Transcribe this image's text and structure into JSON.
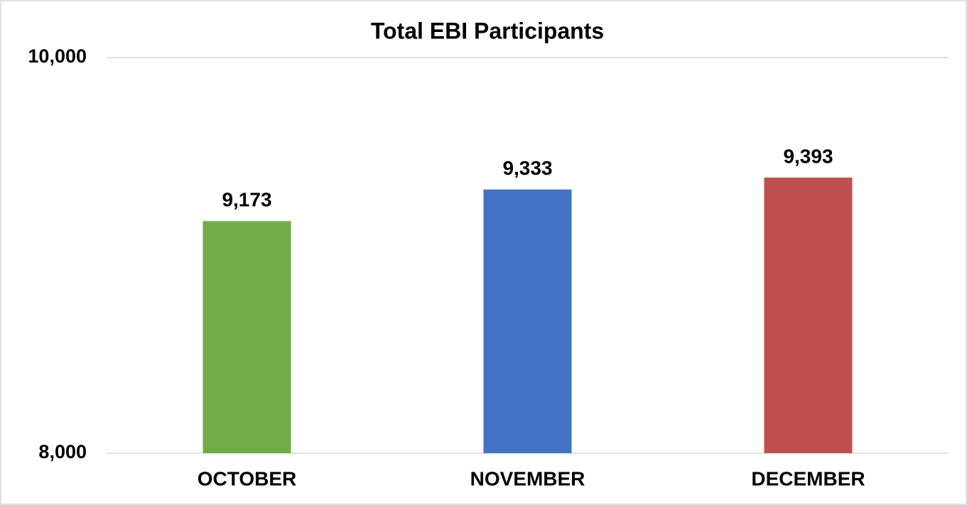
{
  "chart_data": {
    "type": "bar",
    "title": "Total EBI Participants",
    "categories": [
      "OCTOBER",
      "NOVEMBER",
      "DECEMBER"
    ],
    "values": [
      9173,
      9333,
      9393
    ],
    "value_labels": [
      "9,173",
      "9,333",
      "9,393"
    ],
    "colors": [
      "#70ad47",
      "#4472c4",
      "#c0504d"
    ],
    "ylim": [
      8000,
      10000
    ],
    "yticks": [
      {
        "value": 8000,
        "label": "8,000"
      },
      {
        "value": 10000,
        "label": "10,000"
      }
    ],
    "grid": true
  }
}
